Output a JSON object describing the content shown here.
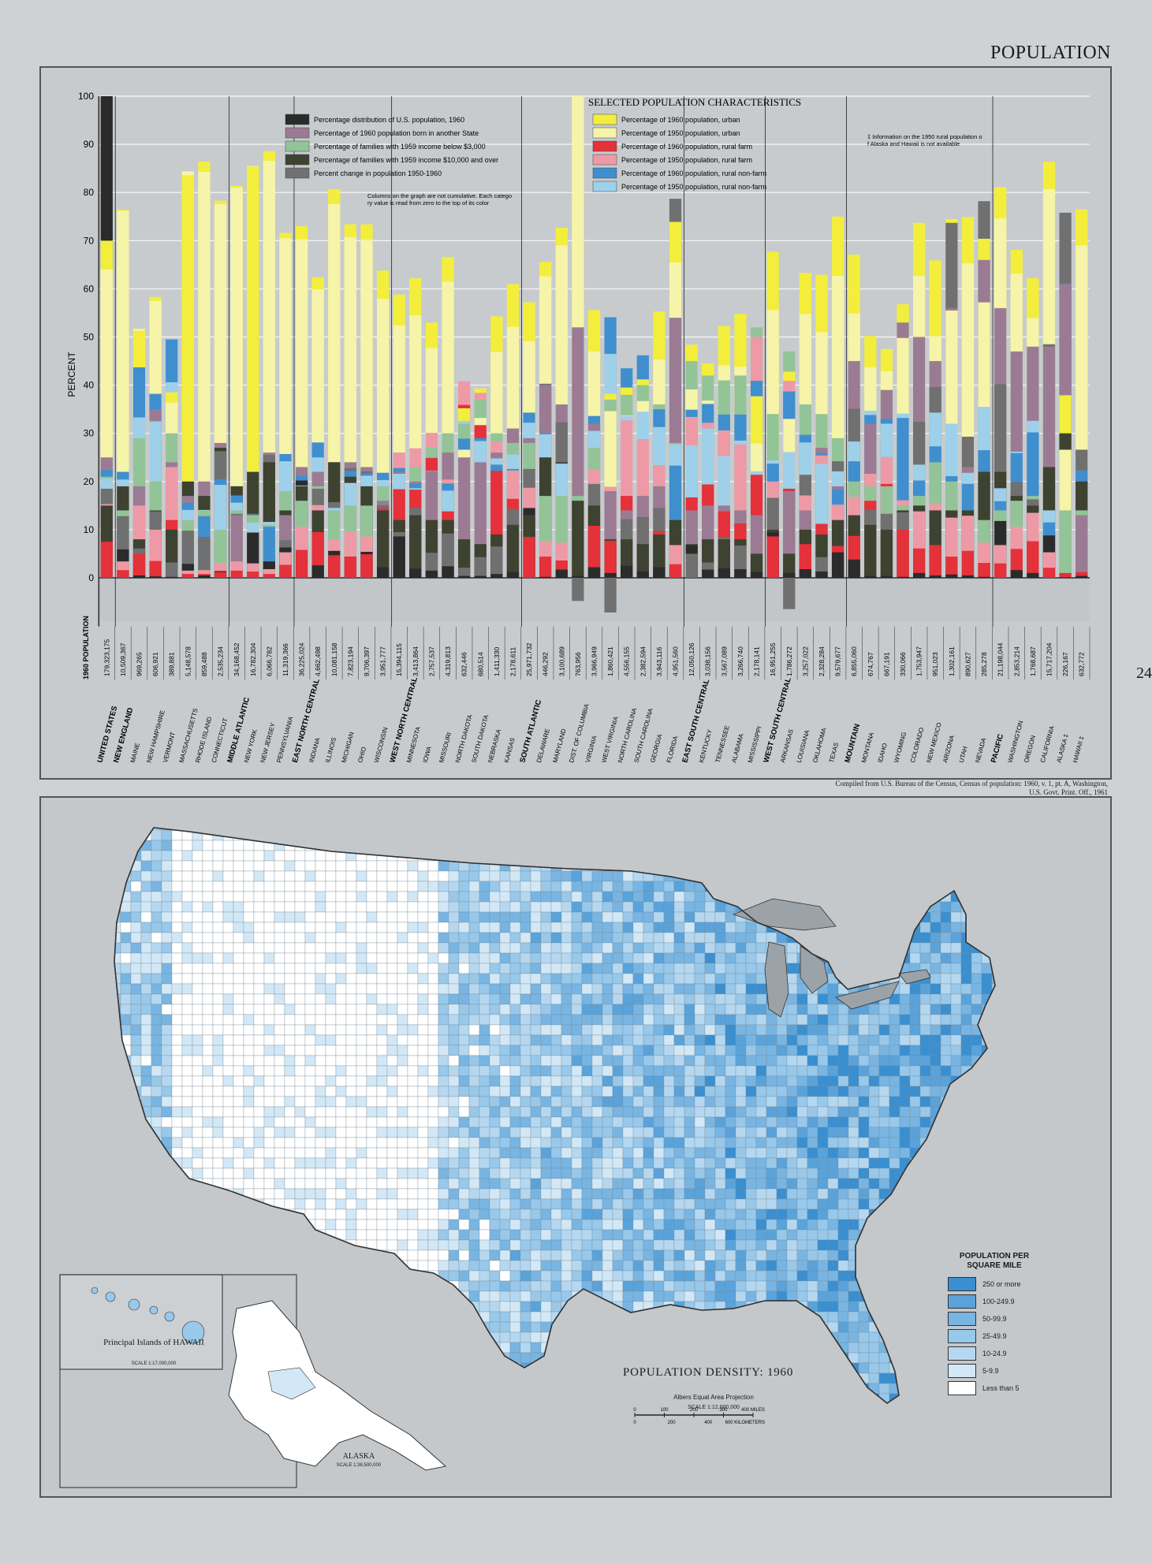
{
  "page": {
    "title": "POPULATION",
    "side_number": "24",
    "source_note": "Compiled from U.S. Bureau of the Census, Census of population: 1960, v. 1, pt. A, Washington, U.S. Govt. Print. Off., 1961"
  },
  "chart_data": {
    "type": "bar",
    "title": "SELECTED POPULATION CHARACTERISTICS",
    "ylabel": "PERCENT",
    "ylim": [
      -10,
      100
    ],
    "yticks": [
      0,
      10,
      20,
      30,
      40,
      50,
      60,
      70,
      80,
      90,
      100
    ],
    "population_header": "1960 POPULATION",
    "note_cumulative": "Columns on the graph are not cumulative. Each category value is read from zero to the top of its color",
    "footnote": "‡ Information on the 1950 rural population of Alaska and Hawaii is not available",
    "series": [
      {
        "name": "Percentage distribution of U.S. population, 1960",
        "color": "#2b2b2b"
      },
      {
        "name": "Percentage of 1960 population born in another State",
        "color": "#9b7b94"
      },
      {
        "name": "Percentage of families with 1959 income below $3,000",
        "color": "#93c497"
      },
      {
        "name": "Percentage of families with 1959 income $10,000 and over",
        "color": "#3e4230"
      },
      {
        "name": "Percent change in population 1950-1960",
        "color": "#707070"
      },
      {
        "name": "Percentage of 1960 population, urban",
        "color": "#f3ee3c"
      },
      {
        "name": "Percentage of 1950 population, urban",
        "color": "#f6f4a8"
      },
      {
        "name": "Percentage of 1960 population, rural farm",
        "color": "#e4313a"
      },
      {
        "name": "Percentage of 1950 population, rural farm",
        "color": "#ee9aa6"
      },
      {
        "name": "Percentage of 1960 population, rural non-farm",
        "color": "#3f8fcf"
      },
      {
        "name": "Percentage of 1950 population, rural non-farm",
        "color": "#9ed0ea"
      }
    ],
    "categories": [
      {
        "name": "UNITED STATES",
        "pop": "179,323,175",
        "region": true,
        "v": [
          100,
          25,
          21,
          15,
          18.5,
          70,
          64,
          7.5,
          15.3,
          22.4,
          20.6
        ]
      },
      {
        "name": "NEW ENGLAND",
        "pop": "10,509,367",
        "region": true,
        "v": [
          5.9,
          22,
          14,
          19,
          12.8,
          76.4,
          76.2,
          1.6,
          3.4,
          22,
          20.4
        ]
      },
      {
        "name": "MAINE",
        "pop": "969,265",
        "v": [
          0.5,
          19,
          29,
          8,
          6.1,
          51.3,
          51.7,
          5,
          15,
          43.7,
          33.3
        ]
      },
      {
        "name": "NEW HAMPSHIRE",
        "pop": "606,921",
        "v": [
          0.3,
          35,
          20,
          14,
          13.8,
          58.3,
          57.5,
          3.5,
          10,
          38.2,
          32.5
        ]
      },
      {
        "name": "VERMONT",
        "pop": "389,881",
        "v": [
          0.2,
          24,
          30,
          10,
          3.2,
          38.5,
          36.4,
          12,
          23,
          49.5,
          40.6
        ]
      },
      {
        "name": "MASSACHUSETTS",
        "pop": "5,148,578",
        "v": [
          2.9,
          17,
          12,
          20,
          9.8,
          83.6,
          84.4,
          0.8,
          1.5,
          15.6,
          14.1
        ]
      },
      {
        "name": "RHODE ISLAND",
        "pop": "859,488",
        "v": [
          0.5,
          20,
          14,
          17,
          8.5,
          86.4,
          84.3,
          0.8,
          1.6,
          12.8,
          14.1
        ]
      },
      {
        "name": "CONNECTICUT",
        "pop": "2,535,234",
        "v": [
          1.4,
          28,
          10,
          27,
          26.3,
          78.3,
          77.6,
          1.2,
          3.1,
          20.5,
          19.3
        ]
      },
      {
        "name": "MIDDLE ATLANTIC",
        "pop": "34,168,452",
        "region": true,
        "v": [
          19,
          13,
          14,
          19,
          13.3,
          81.4,
          81,
          1.5,
          3.4,
          17.1,
          15.6
        ]
      },
      {
        "name": "NEW YORK",
        "pop": "16,782,304",
        "v": [
          9.4,
          13,
          13,
          22,
          13.2,
          85.4,
          85.5,
          1.3,
          3,
          13.3,
          11.5
        ]
      },
      {
        "name": "NEW JERSEY",
        "pop": "6,066,782",
        "v": [
          3.4,
          26,
          11,
          24,
          25.5,
          88.6,
          86.6,
          0.8,
          1.8,
          10.6,
          11.6
        ]
      },
      {
        "name": "PENNSYLVANIA",
        "pop": "11,319,366",
        "v": [
          6.3,
          13,
          18,
          14,
          7.8,
          71.6,
          70.5,
          2.7,
          5.3,
          25.7,
          24.2
        ]
      },
      {
        "name": "EAST NORTH CENTRAL",
        "pop": "36,225,024",
        "region": true,
        "v": [
          20.2,
          23,
          16,
          19,
          19.2,
          73,
          70.3,
          5.8,
          10.6,
          21.2,
          19.1
        ]
      },
      {
        "name": "INDIANA",
        "pop": "4,662,498",
        "v": [
          2.6,
          22,
          19,
          14,
          18.5,
          62.4,
          59.9,
          9.5,
          15.1,
          28.1,
          25
        ]
      },
      {
        "name": "ILLINOIS",
        "pop": "10,081,158",
        "v": [
          5.6,
          24,
          14,
          24,
          15.7,
          80.7,
          77.6,
          4.7,
          7.9,
          14.6,
          14.5
        ]
      },
      {
        "name": "MICHIGAN",
        "pop": "7,823,194",
        "v": [
          4.4,
          24,
          15,
          21,
          22.8,
          73.4,
          70.7,
          4.4,
          9.6,
          22.2,
          19.7
        ]
      },
      {
        "name": "OHIO",
        "pop": "9,706,397",
        "v": [
          5.4,
          23,
          15,
          19,
          22.1,
          73.4,
          70.2,
          4.9,
          8.6,
          21.7,
          21.2
        ]
      },
      {
        "name": "WISCONSIN",
        "pop": "3,951,777",
        "v": [
          2.2,
          16,
          19,
          14,
          15.1,
          63.8,
          57.9,
          14.4,
          21.8,
          21.8,
          20.3
        ]
      },
      {
        "name": "WEST NORTH CENTRAL",
        "pop": "15,394,115",
        "region": true,
        "v": [
          8.6,
          22,
          26,
          12,
          9.5,
          58.8,
          52.4,
          18.4,
          26,
          22.8,
          21.6
        ]
      },
      {
        "name": "MINNESOTA",
        "pop": "3,413,864",
        "v": [
          1.9,
          20,
          23,
          13,
          14.5,
          62.2,
          54.5,
          18.3,
          26.9,
          19.5,
          18.6
        ]
      },
      {
        "name": "IOWA",
        "pop": "2,757,537",
        "v": [
          1.5,
          22,
          27,
          12,
          5.2,
          53,
          47.7,
          24.9,
          30.1,
          22.1,
          22.2
        ]
      },
      {
        "name": "MISSOURI",
        "pop": "4,319,813",
        "v": [
          2.4,
          26,
          30,
          12,
          9.2,
          66.6,
          61.5,
          13.8,
          20.4,
          19.6,
          18.1
        ]
      },
      {
        "name": "NORTH DAKOTA",
        "pop": "632,446",
        "v": [
          0.4,
          25,
          32,
          8,
          2.1,
          35.2,
          26.6,
          35.9,
          40.8,
          28.9,
          32.6
        ]
      },
      {
        "name": "SOUTH DAKOTA",
        "pop": "680,514",
        "v": [
          0.4,
          24,
          37,
          7,
          4.3,
          39.3,
          33.2,
          31.7,
          38.4,
          29,
          28.4
        ]
      },
      {
        "name": "NEBRASKA",
        "pop": "1,411,330",
        "v": [
          0.8,
          26,
          30,
          9,
          6.5,
          54.3,
          46.9,
          22.2,
          28.3,
          23.5,
          24.8
        ]
      },
      {
        "name": "KANSAS",
        "pop": "2,178,611",
        "v": [
          1.2,
          31,
          28,
          11,
          14.3,
          61,
          52.1,
          16.4,
          22.3,
          22.6,
          25.6
        ]
      },
      {
        "name": "SOUTH ATLANTIC",
        "pop": "25,971,732",
        "region": true,
        "v": [
          14.5,
          29,
          28,
          13,
          22.6,
          57.2,
          49.1,
          8.5,
          18.7,
          34.3,
          32.2
        ]
      },
      {
        "name": "DELAWARE",
        "pop": "446,292",
        "v": [
          0.2,
          40,
          17,
          25,
          40.3,
          65.6,
          62.6,
          4.4,
          7.6,
          30,
          29.8
        ]
      },
      {
        "name": "MARYLAND",
        "pop": "3,100,689",
        "v": [
          1.7,
          36,
          17,
          24,
          32.3,
          72.7,
          69,
          3.6,
          7.3,
          23.7,
          23.7
        ]
      },
      {
        "name": "DIST. OF COLUMBIA",
        "pop": "763,956",
        "v": [
          0.4,
          52,
          17,
          16,
          -4.8,
          100,
          100,
          0,
          0,
          0,
          0
        ]
      },
      {
        "name": "VIRGINIA",
        "pop": "3,966,949",
        "v": [
          2.2,
          32,
          27,
          15,
          19.5,
          55.6,
          47,
          10.8,
          22.5,
          33.6,
          30.5
        ]
      },
      {
        "name": "WEST VIRGINIA",
        "pop": "1,860,421",
        "v": [
          1,
          18,
          37,
          8,
          -7.2,
          38.2,
          34.6,
          7.7,
          18.9,
          54.1,
          46.5
        ]
      },
      {
        "name": "NORTH CAROLINA",
        "pop": "4,556,155",
        "v": [
          2.5,
          14,
          38,
          8,
          12.2,
          39.5,
          33.7,
          17,
          32.7,
          43.5,
          33.6
        ]
      },
      {
        "name": "SOUTH CAROLINA",
        "pop": "2,382,594",
        "v": [
          1.3,
          17,
          40,
          7,
          12.5,
          41.2,
          36.7,
          12.6,
          28.8,
          46.2,
          34.5
        ]
      },
      {
        "name": "GEORGIA",
        "pop": "3,943,116",
        "v": [
          2.2,
          19,
          36,
          9,
          14.5,
          55.3,
          45.3,
          9.7,
          23.4,
          35,
          31.3
        ]
      },
      {
        "name": "FLORIDA",
        "pop": "4,951,560",
        "v": [
          2.8,
          54,
          28,
          12,
          78.7,
          73.9,
          65.5,
          2.8,
          6.8,
          23.3,
          27.7
        ]
      },
      {
        "name": "EAST SOUTH CENTRAL",
        "pop": "12,050,126",
        "region": true,
        "v": [
          6.7,
          14,
          45,
          7,
          5,
          48.4,
          39.1,
          16.7,
          33.4,
          34.9,
          27.5
        ]
      },
      {
        "name": "KENTUCKY",
        "pop": "3,038,156",
        "v": [
          1.7,
          15,
          42,
          8,
          3.2,
          44.5,
          36.8,
          19.4,
          32.2,
          36.1,
          31
        ]
      },
      {
        "name": "TENNESSEE",
        "pop": "3,567,089",
        "v": [
          2,
          15,
          41,
          8,
          8.4,
          52.3,
          44.1,
          13.8,
          30.6,
          33.9,
          25.3
        ]
      },
      {
        "name": "ALABAMA",
        "pop": "3,266,740",
        "v": [
          1.8,
          14,
          42,
          8,
          6.7,
          54.8,
          43.8,
          11.3,
          27.7,
          33.9,
          28.5
        ]
      },
      {
        "name": "MISSISSIPPI",
        "pop": "2,178,141",
        "v": [
          1.2,
          13,
          52,
          5,
          -0.0,
          37.7,
          27.9,
          21.4,
          50,
          40.9,
          22.1
        ]
      },
      {
        "name": "WEST SOUTH CENTRAL",
        "pop": "16,951,255",
        "region": true,
        "v": [
          9.5,
          20,
          34,
          10,
          16.6,
          67.7,
          55.6,
          8.6,
          20,
          23.7,
          24.4
        ]
      },
      {
        "name": "ARKANSAS",
        "pop": "1,786,272",
        "v": [
          1,
          18,
          47,
          5,
          -6.5,
          42.8,
          33,
          18.5,
          40.9,
          38.7,
          26.1
        ]
      },
      {
        "name": "LOUISIANA",
        "pop": "3,257,022",
        "v": [
          1.8,
          14,
          36,
          10,
          21.4,
          63.3,
          54.8,
          7,
          17.1,
          29.7,
          28.1
        ]
      },
      {
        "name": "OKLAHOMA",
        "pop": "2,328,284",
        "v": [
          1.3,
          27,
          34,
          9,
          4.3,
          62.9,
          51,
          11.2,
          25.4,
          25.9,
          23.6
        ]
      },
      {
        "name": "TEXAS",
        "pop": "9,579,677",
        "v": [
          5.3,
          19,
          29,
          12,
          24.2,
          75,
          62.7,
          6.6,
          15.2,
          18.4,
          22.1
        ]
      },
      {
        "name": "MOUNTAIN",
        "pop": "6,855,060",
        "region": true,
        "v": [
          3.8,
          45,
          20,
          13,
          35.1,
          67.1,
          54.9,
          8.7,
          16.8,
          24.2,
          28.3
        ]
      },
      {
        "name": "MONTANA",
        "pop": "674,767",
        "v": [
          0.4,
          32,
          19,
          11,
          14.2,
          50.2,
          43.7,
          16,
          21.6,
          33.8,
          34.7
        ]
      },
      {
        "name": "IDAHO",
        "pop": "667,191",
        "v": [
          0.4,
          39,
          19,
          10,
          13.3,
          47.5,
          42.9,
          19.5,
          25.1,
          33,
          32
        ]
      },
      {
        "name": "WYOMING",
        "pop": "330,066",
        "v": [
          0.2,
          53,
          15,
          14,
          13.6,
          56.8,
          49.8,
          10,
          16.1,
          33.2,
          34.1
        ]
      },
      {
        "name": "COLORADO",
        "pop": "1,753,947",
        "v": [
          1,
          50,
          17,
          15,
          32.4,
          73.7,
          62.7,
          6.1,
          13.8,
          20.2,
          23.5
        ]
      },
      {
        "name": "NEW MEXICO",
        "pop": "951,023",
        "v": [
          0.5,
          45,
          24,
          14,
          39.6,
          65.9,
          50.2,
          6.8,
          15.5,
          27.3,
          34.3
        ]
      },
      {
        "name": "ARIZONA",
        "pop": "1,302,161",
        "v": [
          0.7,
          56,
          20,
          14,
          73.7,
          74.5,
          55.5,
          4.4,
          12.5,
          21.1,
          32
        ]
      },
      {
        "name": "UTAH",
        "pop": "890,627",
        "v": [
          0.5,
          23,
          14,
          14,
          29.3,
          74.9,
          65.3,
          5.6,
          12.9,
          19.5,
          21.8
        ]
      },
      {
        "name": "NEVADA",
        "pop": "285,278",
        "v": [
          0.2,
          66,
          12,
          22,
          78.2,
          70.4,
          57.2,
          3.1,
          7.3,
          26.5,
          35.5
        ]
      },
      {
        "name": "PACIFIC",
        "pop": "21,198,044",
        "region": true,
        "v": [
          11.8,
          56,
          14,
          22,
          40.2,
          81.1,
          74.6,
          3,
          6.8,
          15.9,
          18.6
        ]
      },
      {
        "name": "WASHINGTON",
        "pop": "2,853,214",
        "v": [
          1.6,
          47,
          16,
          17,
          19.9,
          68.1,
          63.2,
          6,
          10.6,
          25.9,
          26.2
        ]
      },
      {
        "name": "OREGON",
        "pop": "1,768,687",
        "v": [
          1,
          48,
          17,
          15,
          16.3,
          62.2,
          53.9,
          7.6,
          13.5,
          30.2,
          32.6
        ]
      },
      {
        "name": "CALIFORNIA",
        "pop": "15,717,204",
        "v": [
          8.8,
          48,
          14,
          23,
          48.5,
          86.4,
          80.7,
          2.1,
          5.3,
          11.5,
          14
        ]
      },
      {
        "name": "ALASKA ‡",
        "pop": "226,167",
        "v": [
          0.1,
          61,
          14,
          30,
          75.8,
          37.9,
          26.6,
          1,
          0,
          61.1,
          0
        ]
      },
      {
        "name": "HAWAII ‡",
        "pop": "632,772",
        "v": [
          0.4,
          13,
          14,
          20,
          26.6,
          76.5,
          69,
          1.2,
          0,
          22.3,
          0
        ]
      }
    ]
  },
  "map": {
    "title": "POPULATION DENSITY: 1960",
    "projection": "Albers Equal Area Projection",
    "scale_text": "SCALE 1:12,000,000",
    "scale_miles": [
      "0",
      "100",
      "200",
      "300",
      "400 MILES"
    ],
    "scale_km": [
      "0",
      "200",
      "400",
      "600 KILOMETERS"
    ],
    "hawaii_label": "Principal Islands of HAWAII",
    "hawaii_scale": "SCALE 1:17,000,000",
    "alaska_label": "ALASKA",
    "alaska_scale": "SCALE 1:38,500,000",
    "legend_title": "POPULATION PER SQUARE MILE",
    "legend": [
      {
        "label": "250 or more",
        "color": "#3a8fd0"
      },
      {
        "label": "100-249.9",
        "color": "#5aa3da"
      },
      {
        "label": "50-99.9",
        "color": "#78b5e2"
      },
      {
        "label": "25-49.9",
        "color": "#98c8ea"
      },
      {
        "label": "10-24.9",
        "color": "#b5d8f0"
      },
      {
        "label": "5-9.9",
        "color": "#d3e8f6"
      },
      {
        "label": "Less than 5",
        "color": "#ffffff"
      }
    ]
  }
}
